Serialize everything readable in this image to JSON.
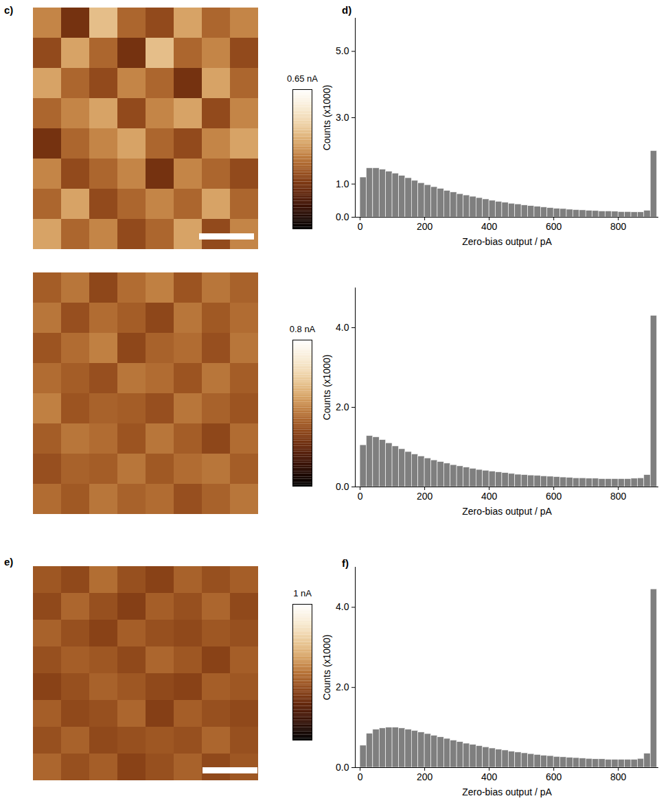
{
  "chart_data": [
    {
      "type": "heatmap",
      "panel": "c)",
      "tick_labels": false,
      "cells": [
        [
          0.35,
          0.2,
          0.45,
          0.3,
          0.25,
          0.4,
          0.3,
          0.35
        ],
        [
          0.25,
          0.4,
          0.3,
          0.2,
          0.45,
          0.3,
          0.35,
          0.25
        ],
        [
          0.4,
          0.3,
          0.25,
          0.35,
          0.3,
          0.2,
          0.4,
          0.3
        ],
        [
          0.3,
          0.35,
          0.4,
          0.25,
          0.35,
          0.4,
          0.25,
          0.35
        ],
        [
          0.2,
          0.3,
          0.35,
          0.4,
          0.3,
          0.25,
          0.35,
          0.4
        ],
        [
          0.35,
          0.25,
          0.3,
          0.35,
          0.2,
          0.35,
          0.3,
          0.25
        ],
        [
          0.3,
          0.4,
          0.25,
          0.3,
          0.35,
          0.3,
          0.4,
          0.3
        ],
        [
          0.4,
          0.3,
          0.35,
          0.25,
          0.3,
          0.4,
          0.25,
          0.35
        ]
      ],
      "colorbar": {
        "range": [
          0,
          0.65
        ],
        "ticks": [
          {
            "value": 0.65,
            "label": "0.65 nA"
          }
        ]
      }
    },
    {
      "type": "heatmap",
      "tick_labels": false,
      "cells": [
        [
          0.35,
          0.4,
          0.3,
          0.38,
          0.42,
          0.33,
          0.4,
          0.36
        ],
        [
          0.4,
          0.32,
          0.38,
          0.35,
          0.3,
          0.4,
          0.34,
          0.38
        ],
        [
          0.33,
          0.38,
          0.42,
          0.3,
          0.36,
          0.38,
          0.32,
          0.4
        ],
        [
          0.38,
          0.35,
          0.32,
          0.4,
          0.38,
          0.33,
          0.4,
          0.35
        ],
        [
          0.42,
          0.33,
          0.36,
          0.35,
          0.32,
          0.4,
          0.36,
          0.33
        ],
        [
          0.35,
          0.4,
          0.38,
          0.33,
          0.4,
          0.35,
          0.3,
          0.38
        ],
        [
          0.32,
          0.36,
          0.35,
          0.4,
          0.34,
          0.38,
          0.4,
          0.35
        ],
        [
          0.38,
          0.34,
          0.4,
          0.36,
          0.38,
          0.32,
          0.36,
          0.4
        ]
      ],
      "colorbar": {
        "range": [
          0,
          0.8
        ],
        "ticks": [
          {
            "value": 0.8,
            "label": "0.8 nA"
          }
        ]
      }
    },
    {
      "type": "heatmap",
      "panel": "e)",
      "tick_labels": false,
      "cells": [
        [
          0.42,
          0.38,
          0.48,
          0.4,
          0.36,
          0.45,
          0.4,
          0.44
        ],
        [
          0.38,
          0.46,
          0.4,
          0.35,
          0.44,
          0.4,
          0.46,
          0.38
        ],
        [
          0.45,
          0.4,
          0.36,
          0.44,
          0.4,
          0.38,
          0.42,
          0.4
        ],
        [
          0.4,
          0.44,
          0.42,
          0.38,
          0.46,
          0.42,
          0.36,
          0.44
        ],
        [
          0.36,
          0.4,
          0.45,
          0.42,
          0.38,
          0.36,
          0.44,
          0.42
        ],
        [
          0.44,
          0.38,
          0.4,
          0.46,
          0.35,
          0.44,
          0.4,
          0.38
        ],
        [
          0.4,
          0.45,
          0.38,
          0.4,
          0.42,
          0.4,
          0.46,
          0.4
        ],
        [
          0.46,
          0.4,
          0.44,
          0.36,
          0.4,
          0.45,
          0.38,
          0.42
        ]
      ],
      "colorbar": {
        "range": [
          0,
          1
        ],
        "ticks": [
          {
            "value": 1,
            "label": "1 nA"
          }
        ]
      }
    },
    {
      "type": "histogram",
      "panel": "d)",
      "color": "#7f7f7f",
      "x_label": "Zero-bias output / pA",
      "y_label": "Counts (x1000)",
      "bins": [
        0,
        20,
        40,
        60,
        80,
        100,
        120,
        140,
        160,
        180,
        200,
        220,
        240,
        260,
        280,
        300,
        320,
        340,
        360,
        380,
        400,
        420,
        440,
        460,
        480,
        500,
        520,
        540,
        560,
        580,
        600,
        620,
        640,
        660,
        680,
        700,
        720,
        740,
        760,
        780,
        800,
        820,
        840,
        860,
        880,
        900,
        920
      ],
      "values": [
        1.2,
        1.48,
        1.48,
        1.44,
        1.38,
        1.32,
        1.25,
        1.18,
        1.1,
        1.03,
        0.97,
        0.91,
        0.86,
        0.8,
        0.75,
        0.7,
        0.66,
        0.62,
        0.58,
        0.54,
        0.5,
        0.47,
        0.44,
        0.41,
        0.39,
        0.36,
        0.34,
        0.32,
        0.3,
        0.28,
        0.26,
        0.25,
        0.23,
        0.22,
        0.21,
        0.2,
        0.19,
        0.18,
        0.18,
        0.17,
        0.16,
        0.16,
        0.15,
        0.15,
        0.2,
        2.0
      ],
      "xlim": [
        -15,
        925
      ],
      "xticks": [
        0,
        200,
        400,
        600,
        800
      ],
      "ylim": [
        0,
        6
      ],
      "yticks": [
        0,
        1,
        3,
        5
      ]
    },
    {
      "type": "histogram",
      "color": "#7f7f7f",
      "x_label": "Zero-bias output / pA",
      "y_label": "Counts (x1000)",
      "bins": [
        0,
        20,
        40,
        60,
        80,
        100,
        120,
        140,
        160,
        180,
        200,
        220,
        240,
        260,
        280,
        300,
        320,
        340,
        360,
        380,
        400,
        420,
        440,
        460,
        480,
        500,
        520,
        540,
        560,
        580,
        600,
        620,
        640,
        660,
        680,
        700,
        720,
        740,
        760,
        780,
        800,
        820,
        840,
        860,
        880,
        900,
        920
      ],
      "values": [
        1.05,
        1.28,
        1.25,
        1.18,
        1.1,
        1.02,
        0.95,
        0.88,
        0.82,
        0.77,
        0.72,
        0.67,
        0.63,
        0.59,
        0.55,
        0.52,
        0.49,
        0.46,
        0.43,
        0.41,
        0.39,
        0.37,
        0.35,
        0.33,
        0.31,
        0.3,
        0.29,
        0.28,
        0.27,
        0.26,
        0.25,
        0.24,
        0.23,
        0.22,
        0.22,
        0.21,
        0.21,
        0.2,
        0.2,
        0.2,
        0.2,
        0.2,
        0.21,
        0.22,
        0.3,
        4.3
      ],
      "xlim": [
        -15,
        925
      ],
      "xticks": [
        0,
        200,
        400,
        600,
        800
      ],
      "ylim": [
        0,
        5
      ],
      "yticks": [
        0,
        2,
        4
      ]
    },
    {
      "type": "histogram",
      "panel": "f)",
      "color": "#7f7f7f",
      "x_label": "Zero-bias output / pA",
      "y_label": "Counts (x1000)",
      "bins": [
        0,
        20,
        40,
        60,
        80,
        100,
        120,
        140,
        160,
        180,
        200,
        220,
        240,
        260,
        280,
        300,
        320,
        340,
        360,
        380,
        400,
        420,
        440,
        460,
        480,
        500,
        520,
        540,
        560,
        580,
        600,
        620,
        640,
        660,
        680,
        700,
        720,
        740,
        760,
        780,
        800,
        820,
        840,
        860,
        880,
        900,
        920
      ],
      "values": [
        0.55,
        0.85,
        0.95,
        0.98,
        1.0,
        1.0,
        0.98,
        0.95,
        0.92,
        0.88,
        0.84,
        0.8,
        0.76,
        0.72,
        0.68,
        0.64,
        0.6,
        0.57,
        0.54,
        0.51,
        0.48,
        0.45,
        0.43,
        0.4,
        0.38,
        0.36,
        0.34,
        0.32,
        0.3,
        0.29,
        0.27,
        0.26,
        0.25,
        0.24,
        0.23,
        0.22,
        0.21,
        0.21,
        0.2,
        0.2,
        0.2,
        0.2,
        0.2,
        0.22,
        0.35,
        4.45
      ],
      "xlim": [
        -15,
        925
      ],
      "xticks": [
        0,
        200,
        400,
        600,
        800
      ],
      "ylim": [
        0,
        5
      ],
      "yticks": [
        0,
        2,
        4
      ]
    }
  ]
}
